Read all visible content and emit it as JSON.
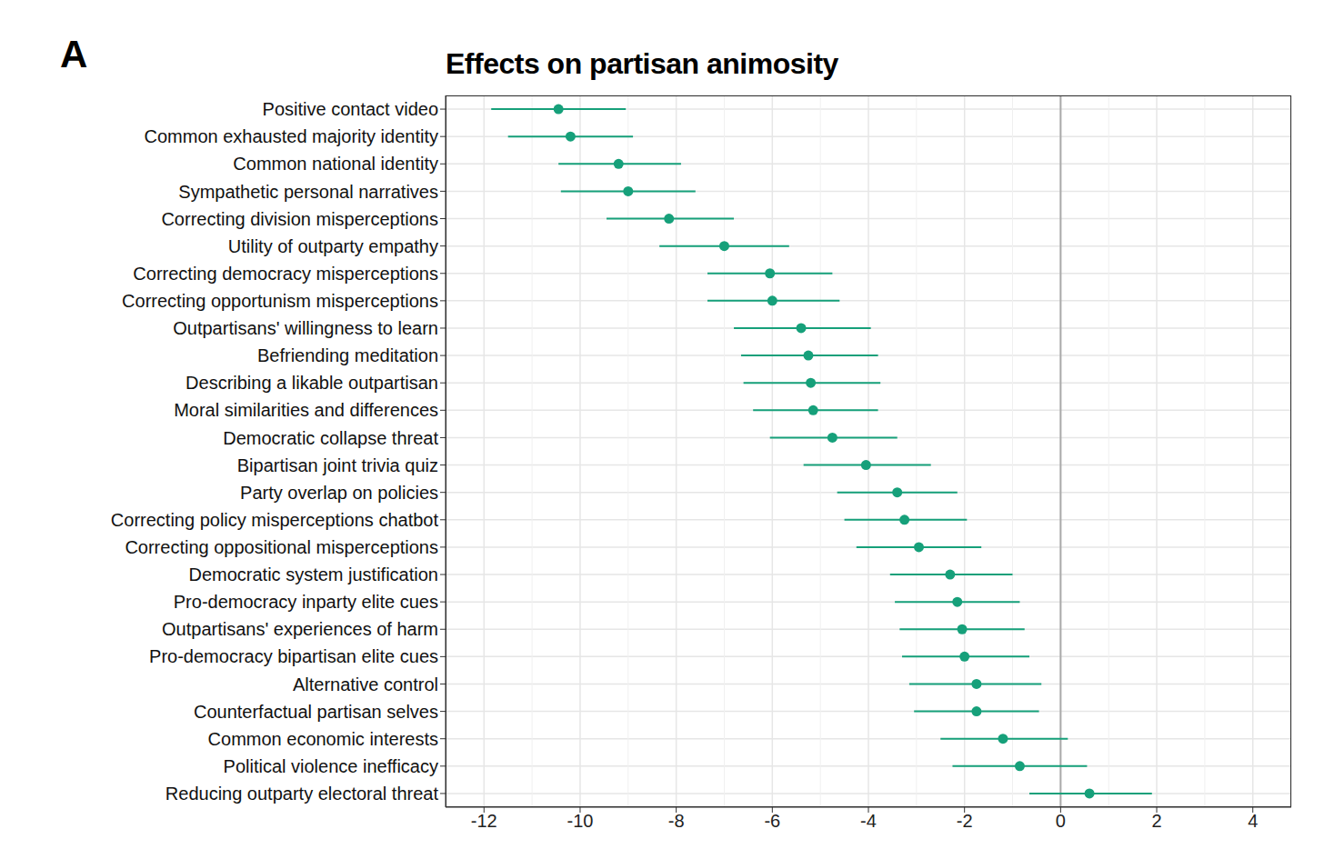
{
  "chart_data": {
    "type": "scatter",
    "panel_label": "A",
    "title": "Effects on partisan animosity",
    "categories": [
      "Positive contact video",
      "Common exhausted majority identity",
      "Common national identity",
      "Sympathetic personal narratives",
      "Correcting division misperceptions",
      "Utility of outparty empathy",
      "Correcting democracy misperceptions",
      "Correcting opportunism misperceptions",
      "Outpartisans' willingness to learn",
      "Befriending meditation",
      "Describing a likable outpartisan",
      "Moral similarities and differences",
      "Democratic collapse threat",
      "Bipartisan joint trivia quiz",
      "Party overlap on policies",
      "Correcting policy misperceptions chatbot",
      "Correcting oppositional misperceptions",
      "Democratic system justification",
      "Pro-democracy inparty elite cues",
      "Outpartisans' experiences of harm",
      "Pro-democracy bipartisan elite cues",
      "Alternative control",
      "Counterfactual partisan selves",
      "Common economic interests",
      "Political violence inefficacy",
      "Reducing outparty electoral threat"
    ],
    "values": [
      -10.45,
      -10.2,
      -9.2,
      -9.0,
      -8.15,
      -7.0,
      -6.05,
      -6.0,
      -5.4,
      -5.25,
      -5.2,
      -5.15,
      -4.75,
      -4.05,
      -3.4,
      -3.25,
      -2.95,
      -2.3,
      -2.15,
      -2.05,
      -2.0,
      -1.75,
      -1.75,
      -1.2,
      -0.85,
      0.6
    ],
    "ci_low": [
      -11.85,
      -11.5,
      -10.45,
      -10.4,
      -9.45,
      -8.35,
      -7.35,
      -7.35,
      -6.8,
      -6.65,
      -6.6,
      -6.4,
      -6.05,
      -5.35,
      -4.65,
      -4.5,
      -4.25,
      -3.55,
      -3.45,
      -3.35,
      -3.3,
      -3.15,
      -3.05,
      -2.5,
      -2.25,
      -0.65
    ],
    "ci_high": [
      -9.05,
      -8.9,
      -7.9,
      -7.6,
      -6.8,
      -5.65,
      -4.75,
      -4.6,
      -3.95,
      -3.8,
      -3.75,
      -3.8,
      -3.4,
      -2.7,
      -2.15,
      -1.95,
      -1.65,
      -1.0,
      -0.85,
      -0.75,
      -0.65,
      -0.4,
      -0.45,
      0.15,
      0.55,
      1.9
    ],
    "color": "#16a07a",
    "xlim": [
      -12.8,
      4.8
    ],
    "xticks": [
      -12,
      -10,
      -8,
      -6,
      -4,
      -2,
      0,
      2,
      4
    ],
    "reference_line": 0,
    "grid": true
  }
}
